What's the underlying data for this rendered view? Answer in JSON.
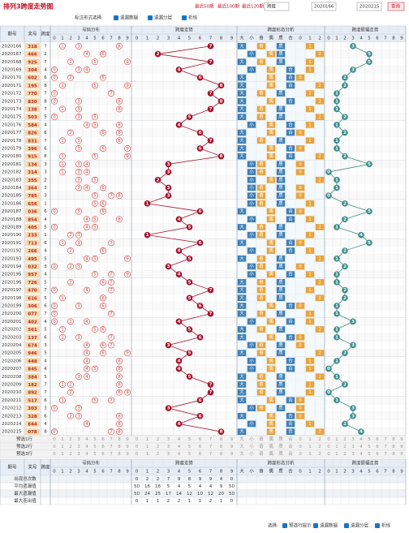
{
  "header": {
    "title": "排列3跨度走势图",
    "links": [
      "最近50期",
      "最近100期",
      "最近120期"
    ],
    "select": "跨度",
    "from": "2020166",
    "to": "2020215",
    "button": "查询"
  },
  "options": {
    "label": "标注形式选择:",
    "items": [
      "遗漏数据",
      "遗漏分层",
      "折线"
    ]
  },
  "table": {
    "columns": {
      "issue": "期号",
      "prize": "奖号",
      "span": "跨度",
      "dist": "号码分布",
      "digits": [
        0,
        1,
        2,
        3,
        4,
        5,
        6,
        7,
        8,
        9
      ],
      "trend": "跨度走势",
      "attr": "跨度形态分析",
      "attrs": [
        "大",
        "小",
        "奇",
        "偶",
        "质",
        "合",
        "0",
        "1",
        "2"
      ],
      "amp": "跨度振幅走势"
    },
    "rows": [
      {
        "issue": "2020166",
        "digits": [
          3,
          1,
          8
        ],
        "span": 7,
        "amp": 3
      },
      {
        "issue": "2020167",
        "digits": [
          4,
          6,
          6
        ],
        "span": 2,
        "amp": 5
      },
      {
        "issue": "2020168",
        "digits": [
          9,
          2,
          5
        ],
        "span": 7,
        "amp": 5
      },
      {
        "issue": "2020169",
        "digits": [
          3,
          0,
          4
        ],
        "span": 4,
        "amp": 3
      },
      {
        "issue": "2020170",
        "digits": [
          6,
          0,
          2
        ],
        "span": 6,
        "amp": 2
      },
      {
        "issue": "2020171",
        "digits": [
          1,
          9,
          5
        ],
        "span": 8,
        "amp": 2
      },
      {
        "issue": "2020172",
        "digits": [
          7,
          7,
          0
        ],
        "span": 7,
        "amp": 1
      },
      {
        "issue": "2020173",
        "digits": [
          8,
          3,
          0
        ],
        "span": 8,
        "amp": 1
      },
      {
        "issue": "2020174",
        "digits": [
          1,
          3,
          8
        ],
        "span": 7,
        "amp": 1
      },
      {
        "issue": "2020175",
        "digits": [
          5,
          0,
          3
        ],
        "span": 5,
        "amp": 2
      },
      {
        "issue": "2020176",
        "digits": [
          5,
          8,
          4
        ],
        "span": 4,
        "amp": 1
      },
      {
        "issue": "2020177",
        "digits": [
          8,
          2,
          6
        ],
        "span": 6,
        "amp": 2
      },
      {
        "issue": "2020178",
        "digits": [
          8,
          3,
          1
        ],
        "span": 7,
        "amp": 1
      },
      {
        "issue": "2020179",
        "digits": [
          3,
          9,
          6
        ],
        "span": 6,
        "amp": 1
      },
      {
        "issue": "2020180",
        "digits": [
          9,
          1,
          5
        ],
        "span": 8,
        "amp": 2
      },
      {
        "issue": "2020181",
        "digits": [
          1,
          3,
          4
        ],
        "span": 3,
        "amp": 5
      },
      {
        "issue": "2020182",
        "digits": [
          3,
          1,
          4
        ],
        "span": 3,
        "amp": 0
      },
      {
        "issue": "2020183",
        "digits": [
          3,
          5,
          5
        ],
        "span": 2,
        "amp": 1
      },
      {
        "issue": "2020184",
        "digits": [
          3,
          6,
          4
        ],
        "span": 3,
        "amp": 1
      },
      {
        "issue": "2020185",
        "digits": [
          7,
          8,
          5
        ],
        "span": 3,
        "amp": 0
      },
      {
        "issue": "2020186",
        "digits": [
          6,
          5,
          6
        ],
        "span": 1,
        "amp": 2
      },
      {
        "issue": "2020187",
        "digits": [
          0,
          3,
          6
        ],
        "span": 6,
        "amp": 5
      },
      {
        "issue": "2020188",
        "digits": [
          8,
          5,
          4
        ],
        "span": 4,
        "amp": 2
      },
      {
        "issue": "2020189",
        "digits": [
          4,
          0,
          5
        ],
        "span": 5,
        "amp": 1
      },
      {
        "issue": "2020190",
        "digits": [
          2,
          3,
          3
        ],
        "span": 1,
        "amp": 4
      },
      {
        "issue": "2020191",
        "digits": [
          7,
          1,
          3
        ],
        "span": 6,
        "amp": 5
      },
      {
        "issue": "2020192",
        "digits": [
          2,
          6,
          6
        ],
        "span": 4,
        "amp": 2
      },
      {
        "issue": "2020193",
        "digits": [
          4,
          9,
          5
        ],
        "span": 5,
        "amp": 1
      },
      {
        "issue": "2020194",
        "digits": [
          0,
          3,
          2
        ],
        "span": 3,
        "amp": 2
      },
      {
        "issue": "2020195",
        "digits": [
          9,
          5,
          7
        ],
        "span": 4,
        "amp": 1
      },
      {
        "issue": "2020196",
        "digits": [
          7,
          2,
          6
        ],
        "span": 5,
        "amp": 1
      },
      {
        "issue": "2020197",
        "digits": [
          4,
          7,
          0
        ],
        "span": 7,
        "amp": 2
      },
      {
        "issue": "2020198",
        "digits": [
          6,
          1,
          6
        ],
        "span": 5,
        "amp": 2
      },
      {
        "issue": "2020199",
        "digits": [
          3,
          0,
          6
        ],
        "span": 6,
        "amp": 1
      },
      {
        "issue": "2020200",
        "digits": [
          0,
          7,
          7
        ],
        "span": 7,
        "amp": 1
      },
      {
        "issue": "2020201",
        "digits": [
          4,
          0,
          2
        ],
        "span": 4,
        "amp": 3
      },
      {
        "issue": "2020202",
        "digits": [
          5,
          6,
          1
        ],
        "span": 5,
        "amp": 1
      },
      {
        "issue": "2020203",
        "digits": [
          1,
          3,
          7
        ],
        "span": 6,
        "amp": 1
      },
      {
        "issue": "2020204",
        "digits": [
          6,
          7,
          4
        ],
        "span": 3,
        "amp": 3
      },
      {
        "issue": "2020205",
        "digits": [
          9,
          4,
          6
        ],
        "span": 5,
        "amp": 2
      },
      {
        "issue": "2020206",
        "digits": [
          4,
          4,
          8
        ],
        "span": 4,
        "amp": 1
      },
      {
        "issue": "2020207",
        "digits": [
          8,
          4,
          5
        ],
        "span": 4,
        "amp": 0
      },
      {
        "issue": "2020208",
        "digits": [
          3,
          8,
          4
        ],
        "span": 5,
        "amp": 1
      },
      {
        "issue": "2020209",
        "digits": [
          1,
          8,
          2
        ],
        "span": 7,
        "amp": 2
      },
      {
        "issue": "2020210",
        "digits": [
          8,
          9,
          2
        ],
        "span": 7,
        "amp": 0
      },
      {
        "issue": "2020211",
        "digits": [
          5,
          1,
          7
        ],
        "span": 6,
        "amp": 1
      },
      {
        "issue": "2020212",
        "digits": [
          3,
          0,
          3
        ],
        "span": 3,
        "amp": 3
      },
      {
        "issue": "2020213",
        "digits": [
          3,
          2,
          8
        ],
        "span": 6,
        "amp": 3
      },
      {
        "issue": "2020214",
        "digits": [
          8,
          4,
          4
        ],
        "span": 4,
        "amp": 2
      },
      {
        "issue": "2020215",
        "digits": [
          0,
          7,
          8
        ],
        "span": 8,
        "amp": 4
      }
    ],
    "preselect": [
      "预选1行",
      "预选2行",
      "预选3行"
    ],
    "stats": [
      {
        "label": "出现总次数",
        "values": [
          0,
          2,
          2,
          7,
          9,
          8,
          9,
          9,
          4,
          0
        ]
      },
      {
        "label": "平均遗漏值",
        "values": [
          50,
          16,
          16,
          5,
          4,
          5,
          4,
          4,
          9,
          50
        ]
      },
      {
        "label": "最大遗漏值",
        "values": [
          50,
          24,
          25,
          17,
          14,
          12,
          10,
          12,
          20,
          50
        ]
      },
      {
        "label": "最大连出值",
        "values": [
          0,
          1,
          1,
          2,
          2,
          1,
          1,
          2,
          1,
          0
        ]
      }
    ]
  },
  "footer": {
    "label": "选择:",
    "items": [
      "预选行提示",
      "遗漏数据",
      "遗漏分层",
      "折线"
    ]
  }
}
